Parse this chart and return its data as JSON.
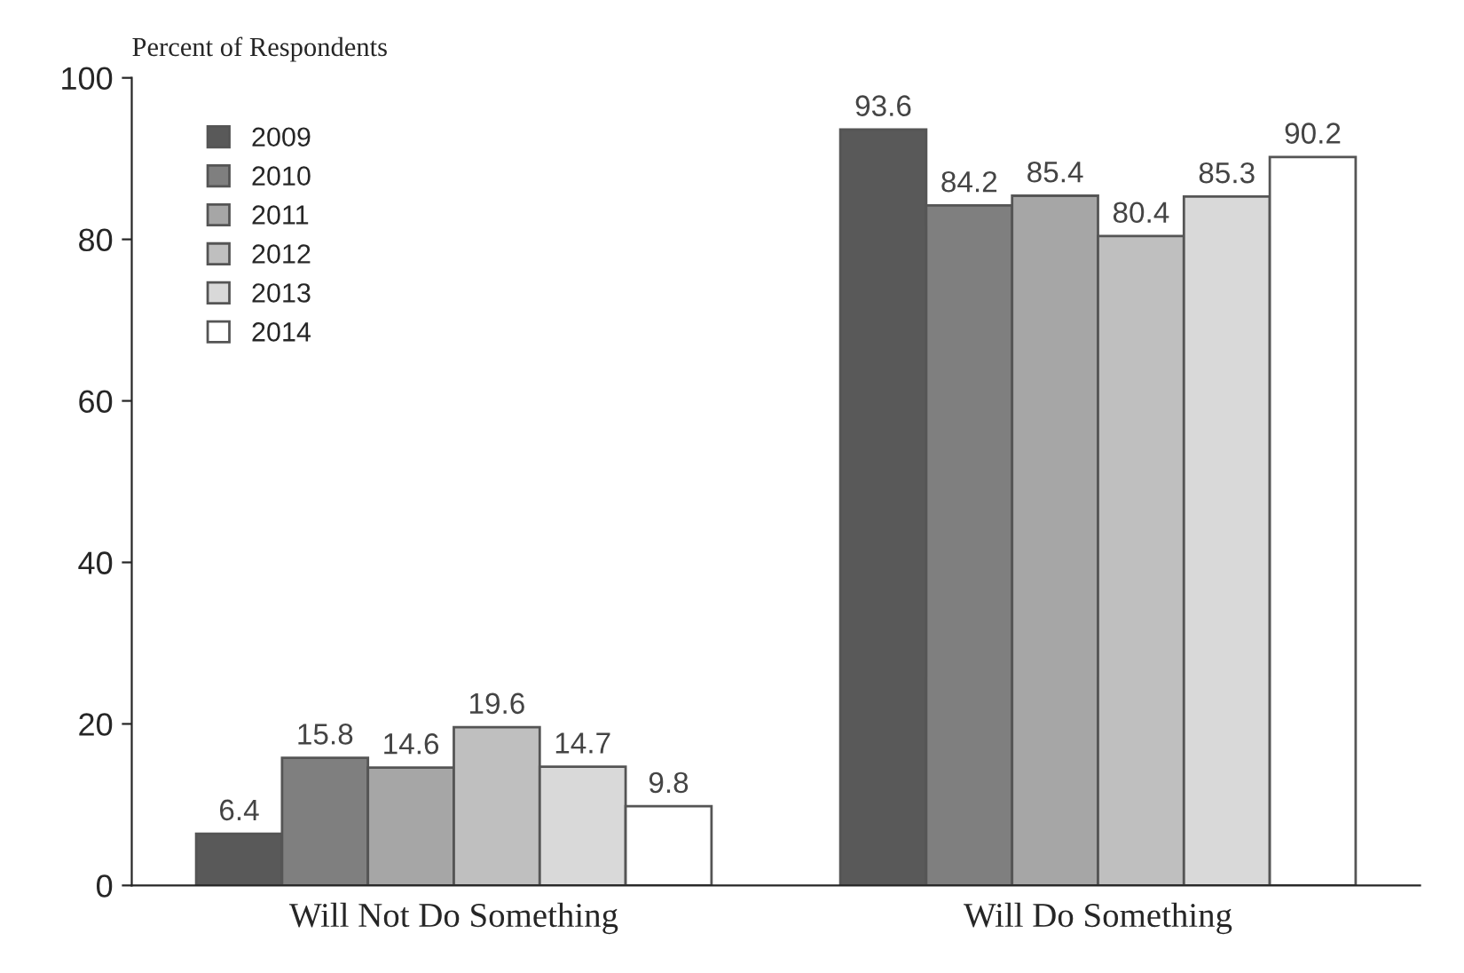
{
  "chart_data": {
    "type": "bar",
    "ylabel": "Percent of Respondents",
    "categories": [
      "Will Not Do Something",
      "Will Do Something"
    ],
    "series": [
      {
        "name": "2009",
        "color": "#595959",
        "values": [
          6.4,
          93.6
        ]
      },
      {
        "name": "2010",
        "color": "#7f7f7f",
        "values": [
          15.8,
          84.2
        ]
      },
      {
        "name": "2011",
        "color": "#a6a6a6",
        "values": [
          14.6,
          85.4
        ]
      },
      {
        "name": "2012",
        "color": "#bfbfbf",
        "values": [
          19.6,
          80.4
        ]
      },
      {
        "name": "2013",
        "color": "#d9d9d9",
        "values": [
          14.7,
          85.3
        ]
      },
      {
        "name": "2014",
        "color": "#ffffff",
        "values": [
          9.8,
          90.2
        ]
      }
    ],
    "ylim": [
      0,
      100
    ],
    "yticks": [
      0,
      20,
      40,
      60,
      80,
      100
    ],
    "data_labels": true,
    "grid": false,
    "legend": "top left"
  }
}
